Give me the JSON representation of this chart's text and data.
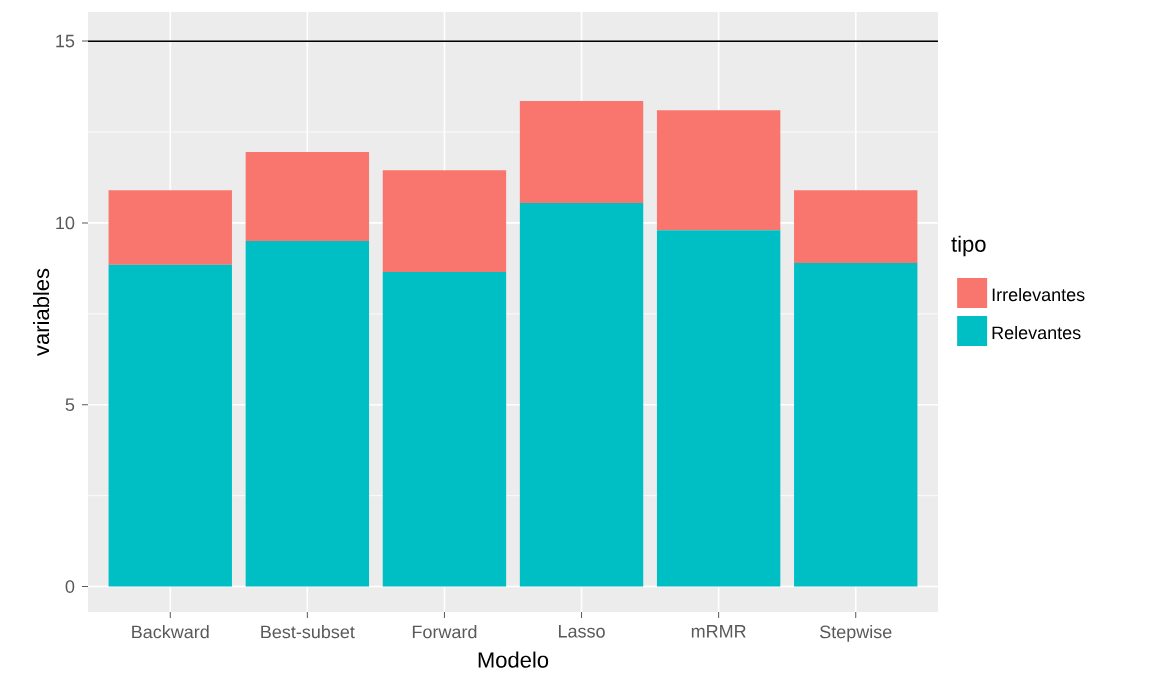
{
  "chart_data": {
    "type": "bar",
    "stacked": true,
    "xlabel": "Modelo",
    "ylabel": "variables",
    "legend_title": "tipo",
    "categories": [
      "Backward",
      "Best-subset",
      "Forward",
      "Lasso",
      "mRMR",
      "Stepwise"
    ],
    "series": [
      {
        "name": "Relevantes",
        "color": "#00bfc4",
        "values": [
          8.85,
          9.5,
          8.65,
          10.55,
          9.8,
          8.9
        ]
      },
      {
        "name": "Irrelevantes",
        "color": "#f8766d",
        "values": [
          2.05,
          2.45,
          2.8,
          2.8,
          3.3,
          2.0
        ]
      }
    ],
    "ylim": [
      -0.7,
      15.8
    ],
    "yticks": [
      0,
      5,
      10,
      15
    ],
    "grid": true,
    "legend": "right",
    "ref_lines": [
      {
        "axis": "y",
        "value": 15,
        "color": "#000000"
      }
    ]
  }
}
